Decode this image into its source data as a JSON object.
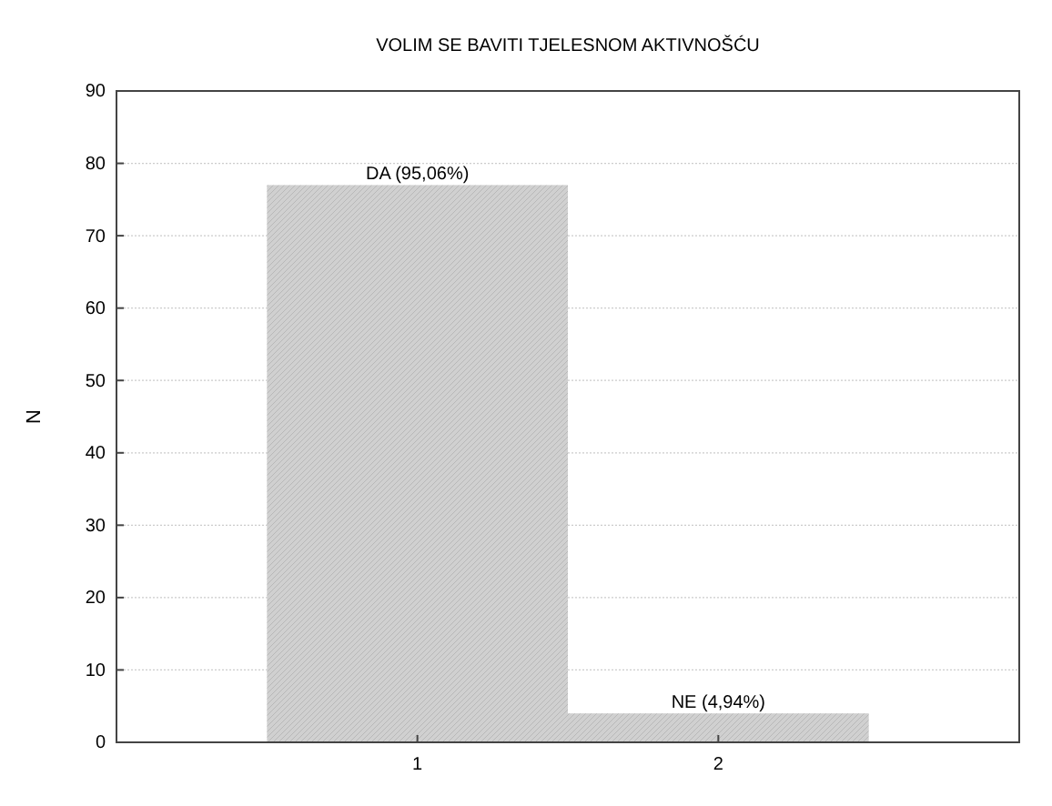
{
  "chart_data": {
    "type": "bar",
    "title": "VOLIM SE BAVITI TJELESNOM AKTIVNOŠĆU",
    "ylabel": "N",
    "categories": [
      "1",
      "2"
    ],
    "values": [
      77,
      4
    ],
    "color": "#d0d0d0",
    "ylim": [
      0,
      90
    ],
    "yticks": [
      0,
      10,
      20,
      30,
      40,
      50,
      60,
      70,
      80,
      90
    ],
    "grid": "y",
    "annotations": [
      {
        "text": "DA (95,06%)",
        "x": "1",
        "y": 77
      },
      {
        "text": "NE (4,94%)",
        "x": "2",
        "y": 4
      }
    ]
  }
}
